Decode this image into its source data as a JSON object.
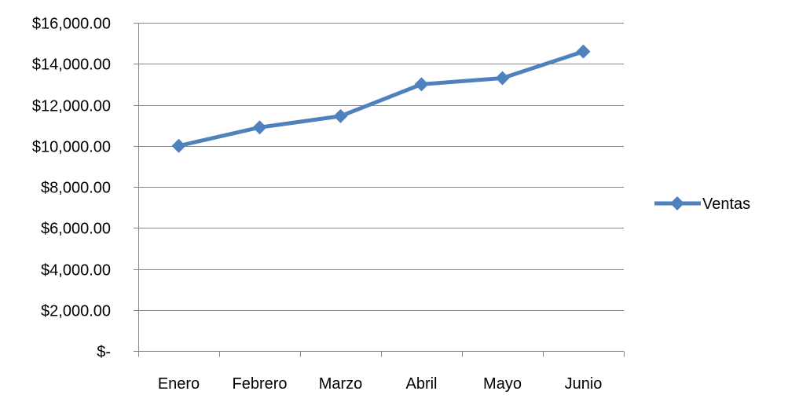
{
  "chart_data": {
    "type": "line",
    "title": "",
    "xlabel": "",
    "ylabel": "",
    "categories": [
      "Enero",
      "Febrero",
      "Marzo",
      "Abril",
      "Mayo",
      "Junio"
    ],
    "series": [
      {
        "name": "Ventas",
        "values": [
          10000,
          10900,
          11450,
          13000,
          13300,
          14600
        ],
        "color": "#4f81bd"
      }
    ],
    "ylim": [
      0,
      16000
    ],
    "y_ticks": [
      0,
      2000,
      4000,
      6000,
      8000,
      10000,
      12000,
      14000,
      16000
    ],
    "y_tick_labels": [
      "$-",
      "$2,000.00",
      "$4,000.00",
      "$6,000.00",
      "$8,000.00",
      "$10,000.00",
      "$12,000.00",
      "$14,000.00",
      "$16,000.00"
    ],
    "grid": true,
    "legend_position": "right",
    "marker": "diamond",
    "colors": {
      "gridline": "#868686",
      "axis": "#868686",
      "text": "#000000"
    }
  }
}
